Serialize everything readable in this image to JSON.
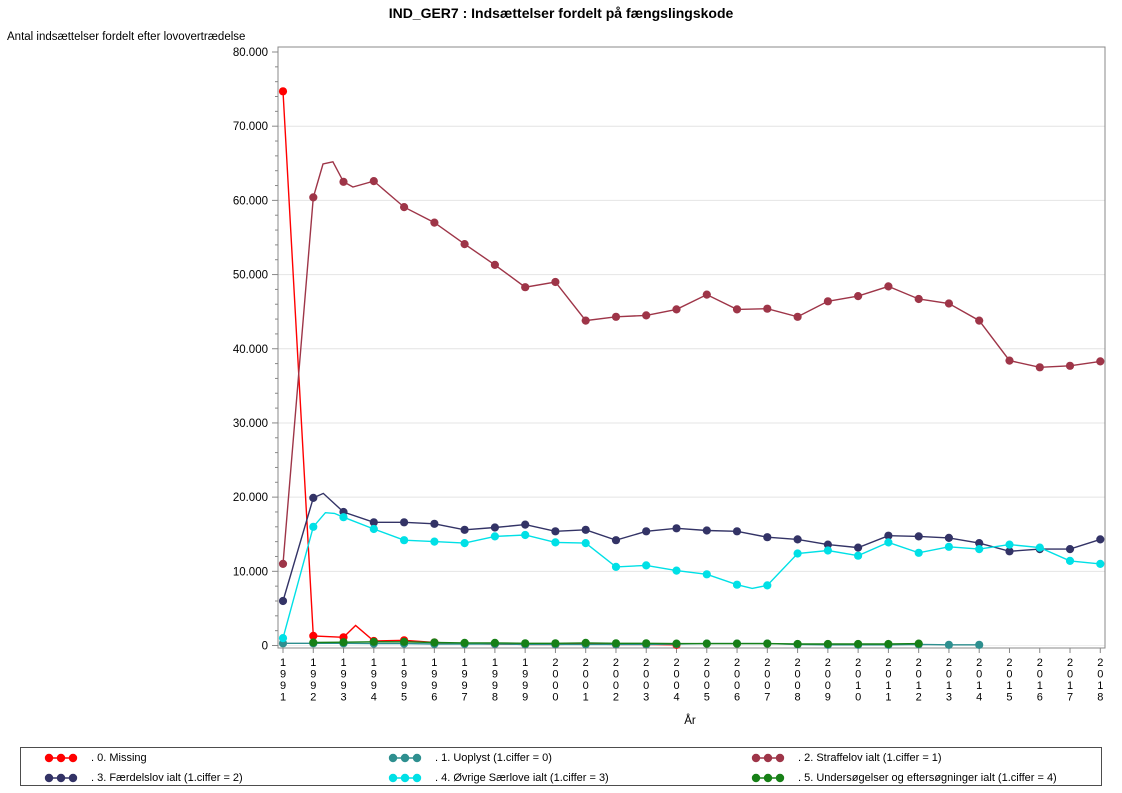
{
  "title": "IND_GER7 : Indsættelser fordelt på fængslingskode",
  "chart_data": {
    "type": "line",
    "title": "IND_GER7 : Indsættelser fordelt på fængslingskode",
    "ylabel": "Antal indsættelser fordelt efter lovovertrædelse",
    "xlabel": "År",
    "x": [
      1991,
      1992,
      1993,
      1994,
      1995,
      1996,
      1997,
      1998,
      1999,
      2000,
      2001,
      2002,
      2003,
      2004,
      2005,
      2006,
      2007,
      2008,
      2009,
      2010,
      2011,
      2012,
      2013,
      2014,
      2015,
      2016,
      2017,
      2018
    ],
    "ylim": [
      0,
      80000
    ],
    "ytick_step": 10000,
    "ytick_minor_step": 2000,
    "ytick_labels": [
      "0",
      "10.000",
      "20.000",
      "30.000",
      "40.000",
      "50.000",
      "60.000",
      "70.000",
      "80.000"
    ],
    "grid": "horizontal-major",
    "legend_position": "bottom",
    "series": [
      {
        "name": ". 0. Missing",
        "color": "#ff0000",
        "values": [
          74700,
          1300,
          1100,
          600,
          700,
          400,
          250,
          200,
          150,
          150,
          200,
          150,
          150,
          100,
          null,
          null,
          null,
          null,
          null,
          null,
          null,
          null,
          null,
          null,
          null,
          null,
          null,
          null
        ],
        "extra_line_points": [
          [
            1993.4,
            2700
          ]
        ]
      },
      {
        "name": ". 1. Uoplyst (1.ciffer = 0)",
        "color": "#2e8f8f",
        "values": [
          300,
          300,
          300,
          250,
          250,
          200,
          200,
          200,
          150,
          150,
          150,
          150,
          150,
          200,
          250,
          250,
          250,
          150,
          100,
          100,
          100,
          150,
          100,
          100,
          null,
          null,
          null,
          null
        ],
        "extra_line_points": []
      },
      {
        "name": ". 2. Straffelov ialt (1.ciffer = 1)",
        "color": "#9e3548",
        "values": [
          11000,
          60400,
          62500,
          62600,
          59100,
          57000,
          54100,
          51300,
          48300,
          49000,
          43800,
          44300,
          44500,
          45300,
          47300,
          45300,
          45400,
          44300,
          46400,
          47100,
          48400,
          46700,
          46100,
          43800,
          38400,
          37500,
          37700,
          38300
        ],
        "extra_line_points": [
          [
            1992.32,
            64900
          ],
          [
            1992.65,
            65200
          ],
          [
            1993.31,
            61800
          ]
        ]
      },
      {
        "name": ". 3. Færdelslov ialt (1.ciffer = 2)",
        "color": "#333366",
        "values": [
          6000,
          19900,
          18000,
          16600,
          16600,
          16400,
          15600,
          15900,
          16300,
          15400,
          15600,
          14200,
          15400,
          15800,
          15500,
          15400,
          14600,
          14300,
          13600,
          13200,
          14800,
          14700,
          14500,
          13800,
          12700,
          13000,
          13000,
          14300
        ],
        "extra_line_points": [
          [
            1992.33,
            20500
          ]
        ]
      },
      {
        "name": ". 4. Øvrige Særlove ialt (1.ciffer = 3)",
        "color": "#00e0e6",
        "values": [
          1000,
          16000,
          17300,
          15700,
          14200,
          14000,
          13800,
          14700,
          14900,
          13900,
          13800,
          10600,
          10800,
          10100,
          9600,
          8200,
          8100,
          12400,
          12800,
          12100,
          13900,
          12500,
          13300,
          13000,
          13600,
          13200,
          11400,
          11000
        ],
        "extra_line_points": [
          [
            1992.4,
            17900
          ],
          [
            1992.7,
            17800
          ],
          [
            2006.5,
            7700
          ]
        ]
      },
      {
        "name": ". 5. Undersøgelser og eftersøgninger ialt (1.ciffer = 4)",
        "color": "#178017",
        "values": [
          null,
          400,
          450,
          500,
          500,
          400,
          350,
          350,
          300,
          300,
          350,
          300,
          300,
          250,
          250,
          250,
          250,
          200,
          200,
          200,
          200,
          250,
          null,
          null,
          null,
          null,
          null,
          null
        ],
        "extra_line_points": []
      }
    ],
    "legend_rows": [
      [
        0,
        1,
        2
      ],
      [
        3,
        4,
        5
      ]
    ],
    "axis_color": "#888888",
    "grid_color": "#e4e4e4",
    "zero_grid_color": "#efefef"
  }
}
